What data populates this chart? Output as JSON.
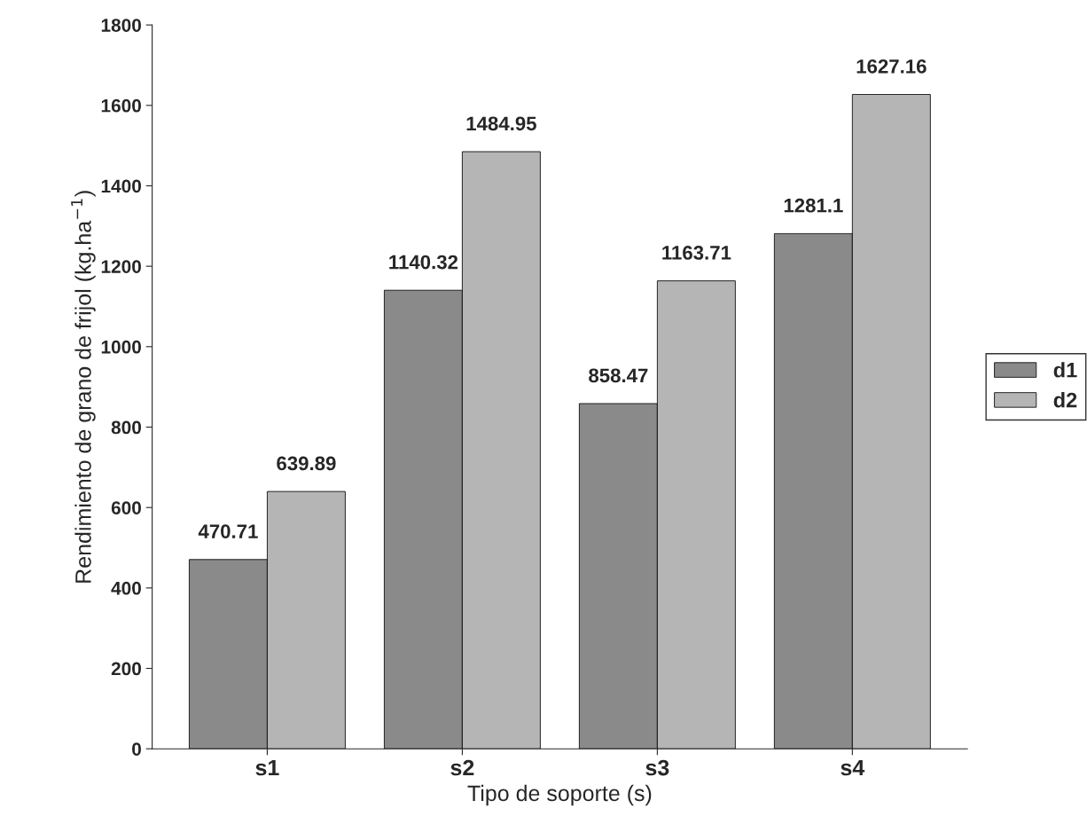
{
  "chart_data": {
    "type": "bar",
    "xlabel": "Tipo de soporte (s)",
    "ylabel": "Rendimiento de grano de frijol (kg.ha$^{−1}$)",
    "categories": [
      "s1",
      "s2",
      "s3",
      "s4"
    ],
    "series": [
      {
        "name": "d1",
        "color": "#8a8a8a",
        "values": [
          470.71,
          1140.32,
          858.47,
          1281.1
        ]
      },
      {
        "name": "d2",
        "color": "#b5b5b5",
        "values": [
          639.89,
          1484.95,
          1163.71,
          1627.16
        ]
      }
    ],
    "ylim": [
      0,
      1800
    ],
    "yticks": [
      0,
      200,
      400,
      600,
      800,
      1000,
      1200,
      1400,
      1600,
      1800
    ],
    "data_labels": true,
    "grid": false,
    "legend": "right"
  }
}
